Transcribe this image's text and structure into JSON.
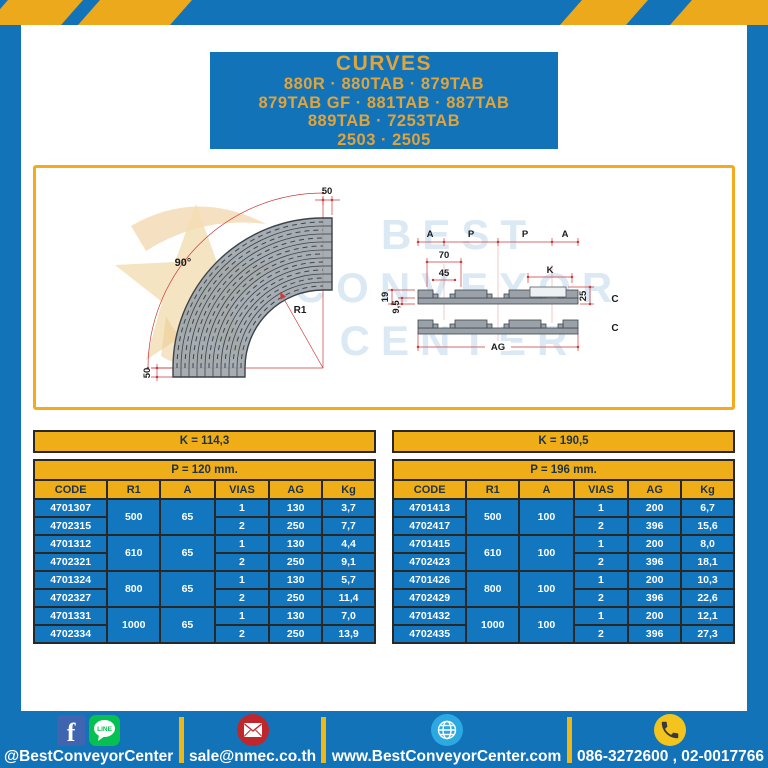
{
  "header": {
    "title": "CURVES",
    "lines": [
      "880R · 880TAB · 879TAB",
      "879TAB GF · 881TAB · 887TAB",
      "889TAB · 7253TAB",
      "2503 · 2505"
    ]
  },
  "watermark": {
    "line1": "BEST",
    "line2": "CONVEYOR",
    "line3": "CENTER"
  },
  "diagram": {
    "angle": "90°",
    "r1": "R1",
    "top50": "50",
    "bottom50": "50",
    "a1": "A",
    "p1": "P",
    "p2": "P",
    "a2": "A",
    "d70": "70",
    "d45": "45",
    "k": "K",
    "d25": "25",
    "d19": "19",
    "d95": "9,5",
    "ag": "AG",
    "c1": "C",
    "c2": "C"
  },
  "tables": [
    {
      "k": "K = 114,3",
      "p": "P = 120 mm.",
      "columns": [
        "CODE",
        "R1",
        "A",
        "VIAS",
        "AG",
        "Kg"
      ],
      "groups": [
        {
          "r1": "500",
          "a": "65",
          "rows": [
            [
              "4701307",
              "1",
              "130",
              "3,7"
            ],
            [
              "4702315",
              "2",
              "250",
              "7,7"
            ]
          ]
        },
        {
          "r1": "610",
          "a": "65",
          "rows": [
            [
              "4701312",
              "1",
              "130",
              "4,4"
            ],
            [
              "4702321",
              "2",
              "250",
              "9,1"
            ]
          ]
        },
        {
          "r1": "800",
          "a": "65",
          "rows": [
            [
              "4701324",
              "1",
              "130",
              "5,7"
            ],
            [
              "4702327",
              "2",
              "250",
              "11,4"
            ]
          ]
        },
        {
          "r1": "1000",
          "a": "65",
          "rows": [
            [
              "4701331",
              "1",
              "130",
              "7,0"
            ],
            [
              "4702334",
              "2",
              "250",
              "13,9"
            ]
          ]
        }
      ]
    },
    {
      "k": "K = 190,5",
      "p": "P = 196 mm.",
      "columns": [
        "CODE",
        "R1",
        "A",
        "VIAS",
        "AG",
        "Kg"
      ],
      "groups": [
        {
          "r1": "500",
          "a": "100",
          "rows": [
            [
              "4701413",
              "1",
              "200",
              "6,7"
            ],
            [
              "4702417",
              "2",
              "396",
              "15,6"
            ]
          ]
        },
        {
          "r1": "610",
          "a": "100",
          "rows": [
            [
              "4701415",
              "1",
              "200",
              "8,0"
            ],
            [
              "4702423",
              "2",
              "396",
              "18,1"
            ]
          ]
        },
        {
          "r1": "800",
          "a": "100",
          "rows": [
            [
              "4701426",
              "1",
              "200",
              "10,3"
            ],
            [
              "4702429",
              "2",
              "396",
              "22,6"
            ]
          ]
        },
        {
          "r1": "1000",
          "a": "100",
          "rows": [
            [
              "4701432",
              "1",
              "200",
              "12,1"
            ],
            [
              "4702435",
              "2",
              "396",
              "27,3"
            ]
          ]
        }
      ]
    }
  ],
  "footer": {
    "sections": [
      {
        "icons": [
          "facebook-icon",
          "line-icon"
        ],
        "label": "@BestConveyorCenter"
      },
      {
        "icons": [
          "mail-icon"
        ],
        "label": "sale@nmec.co.th"
      },
      {
        "icons": [
          "globe-icon"
        ],
        "label": "www.BestConveyorCenter.com"
      },
      {
        "icons": [
          "phone-icon"
        ],
        "label": "086-3272600 , 02-0017766"
      }
    ]
  },
  "colors": {
    "frame_blue": "#1273b8",
    "hazard_yellow": "#eda91c",
    "table_yellow": "#efae17",
    "table_blue": "#1277bf",
    "header_gold": "#e0a43c",
    "dimension_red": "#cc3a3a",
    "profile_gray": "#9aa1a8"
  }
}
